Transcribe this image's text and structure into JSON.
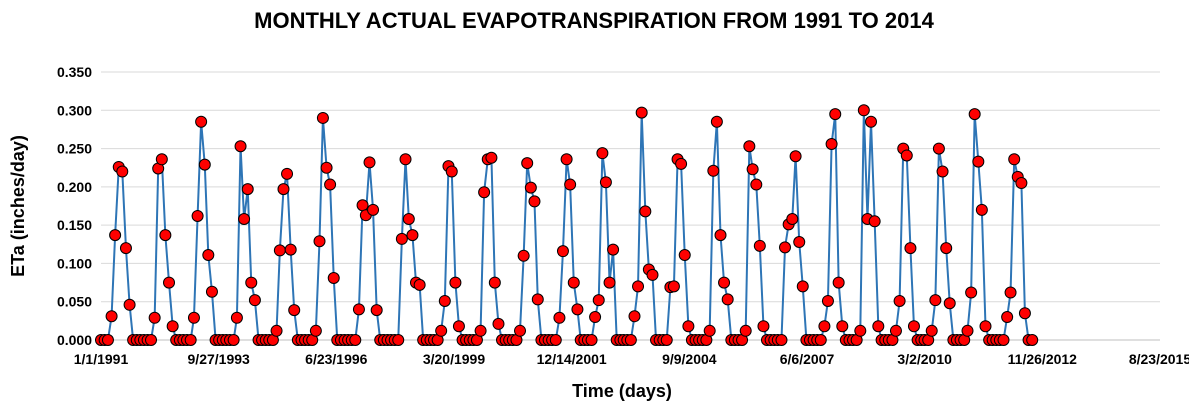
{
  "chart_data": {
    "type": "line",
    "title": "MONTHLY ACTUAL EVAPOTRANSPIRATION FROM 1991 TO 2014",
    "xlabel": "Time (days)",
    "ylabel": "ETa (inches/day)",
    "x_axis": "date",
    "xlim": [
      "1991-01-01",
      "2015-08-23"
    ],
    "x_tick_labels": [
      "1/1/1991",
      "9/27/1993",
      "6/23/1996",
      "3/20/1999",
      "12/14/2001",
      "9/9/2004",
      "6/6/2007",
      "3/2/2010",
      "11/26/2012",
      "8/23/2015"
    ],
    "ylim": [
      0,
      0.35
    ],
    "y_tick_labels": [
      "0.000",
      "0.050",
      "0.100",
      "0.150",
      "0.200",
      "0.250",
      "0.300",
      "0.350"
    ],
    "grid": true,
    "legend": "none",
    "colors": {
      "line": "#2e75b6",
      "marker_fill": "#ff0000",
      "marker_edge": "#000000",
      "grid": "#d9d9d9"
    },
    "start_month": "1991-01",
    "series": [
      {
        "values": [
          0,
          0,
          0,
          0.031,
          0.137,
          0.226,
          0.22,
          0.12,
          0.046,
          0,
          0,
          0,
          0,
          0,
          0,
          0.029,
          0.224,
          0.236,
          0.137,
          0.075,
          0.018,
          0,
          0,
          0,
          0,
          0,
          0.029,
          0.162,
          0.285,
          0.229,
          0.111,
          0.063,
          0,
          0,
          0,
          0,
          0,
          0,
          0.029,
          0.253,
          0.158,
          0.197,
          0.075,
          0.052,
          0,
          0,
          0,
          0,
          0,
          0.012,
          0.117,
          0.197,
          0.217,
          0.118,
          0.039,
          0,
          0,
          0,
          0,
          0,
          0.012,
          0.129,
          0.29,
          0.225,
          0.203,
          0.081,
          0,
          0,
          0,
          0,
          0,
          0,
          0.04,
          0.176,
          0.163,
          0.232,
          0.17,
          0.039,
          0,
          0,
          0,
          0,
          0,
          0,
          0.132,
          0.236,
          0.158,
          0.137,
          0.075,
          0.072,
          0,
          0,
          0,
          0,
          0,
          0.012,
          0.051,
          0.227,
          0.22,
          0.075,
          0.018,
          0,
          0,
          0,
          0,
          0,
          0.012,
          0.193,
          0.236,
          0.238,
          0.075,
          0.021,
          0,
          0,
          0,
          0,
          0,
          0.012,
          0.11,
          0.231,
          0.199,
          0.181,
          0.053,
          0,
          0,
          0,
          0,
          0,
          0.029,
          0.116,
          0.236,
          0.203,
          0.075,
          0.04,
          0,
          0,
          0,
          0,
          0.03,
          0.052,
          0.244,
          0.206,
          0.075,
          0.118,
          0,
          0,
          0,
          0,
          0,
          0.031,
          0.07,
          0.297,
          0.168,
          0.092,
          0.085,
          0,
          0,
          0,
          0,
          0.069,
          0.07,
          0.236,
          0.23,
          0.111,
          0.018,
          0,
          0,
          0,
          0,
          0,
          0.012,
          0.221,
          0.285,
          0.137,
          0.075,
          0.053,
          0,
          0,
          0,
          0,
          0.012,
          0.253,
          0.223,
          0.203,
          0.123,
          0.018,
          0,
          0,
          0,
          0,
          0,
          0.121,
          0.151,
          0.158,
          0.24,
          0.128,
          0.07,
          0,
          0,
          0,
          0,
          0,
          0.018,
          0.051,
          0.256,
          0.295,
          0.075,
          0.018,
          0,
          0,
          0,
          0,
          0.012,
          0.3,
          0.158,
          0.285,
          0.155,
          0.018,
          0,
          0,
          0,
          0,
          0.012,
          0.051,
          0.25,
          0.241,
          0.12,
          0.018,
          0,
          0,
          0,
          0,
          0.012,
          0.052,
          0.25,
          0.22,
          0.12,
          0.048,
          0,
          0,
          0,
          0,
          0.012,
          0.062,
          0.295,
          0.233,
          0.17,
          0.018,
          0,
          0,
          0,
          0,
          0,
          0.03,
          0.062,
          0.236,
          0.213,
          0.205,
          0.035,
          0,
          0
        ]
      }
    ]
  }
}
